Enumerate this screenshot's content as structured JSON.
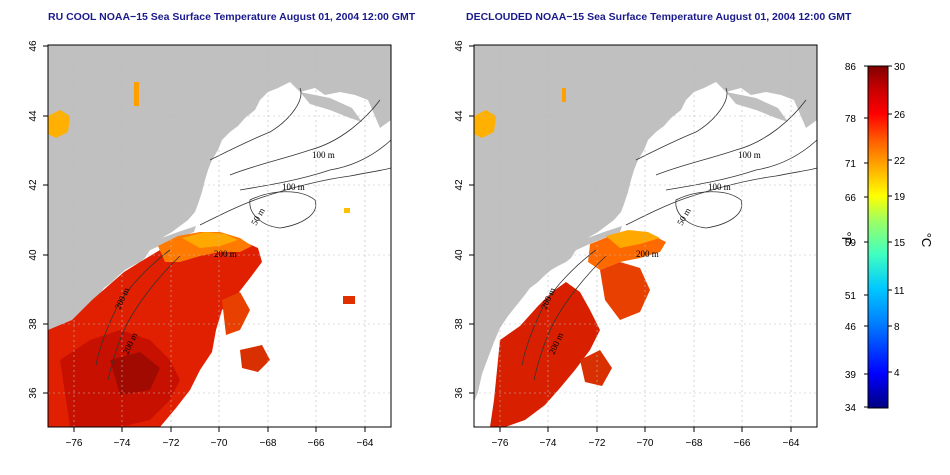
{
  "maps": [
    {
      "title": "RU COOL NOAA−15 Sea Surface Temperature August 01, 2004 12:00 GMT",
      "lat_labels": [
        "46",
        "44",
        "42",
        "40",
        "38",
        "36"
      ],
      "lon_labels": [
        "−76",
        "−74",
        "−72",
        "−70",
        "−68",
        "−66",
        "−64"
      ],
      "contour_labels": [
        "100 m",
        "100 m",
        "50 m",
        "200 m",
        "200 m",
        "200 m"
      ]
    },
    {
      "title": "DECLOUDED NOAA−15 Sea Surface Temperature August 01, 2004 12:00 GMT",
      "lat_labels": [
        "46",
        "44",
        "42",
        "40",
        "38",
        "36"
      ],
      "lon_labels": [
        "−76",
        "−74",
        "−72",
        "−70",
        "−68",
        "−66",
        "−64"
      ],
      "contour_labels": [
        "100 m",
        "100 m",
        "50 m",
        "200 m",
        "200 m",
        "200 m"
      ]
    }
  ],
  "colorbar": {
    "fahrenheit_labels": [
      "86",
      "78",
      "71",
      "66",
      "59",
      "51",
      "46",
      "39",
      "34"
    ],
    "celsius_labels": [
      "30",
      "26",
      "22",
      "19",
      "15",
      "11",
      "8",
      "4"
    ],
    "fahrenheit_unit": "°F",
    "celsius_unit": "°C",
    "colors": [
      "#000080",
      "#0000ff",
      "#0080ff",
      "#00c8ff",
      "#40ffc0",
      "#a0ff60",
      "#ffff00",
      "#ffb000",
      "#ff6000",
      "#ff0000",
      "#c00000",
      "#800000"
    ]
  }
}
